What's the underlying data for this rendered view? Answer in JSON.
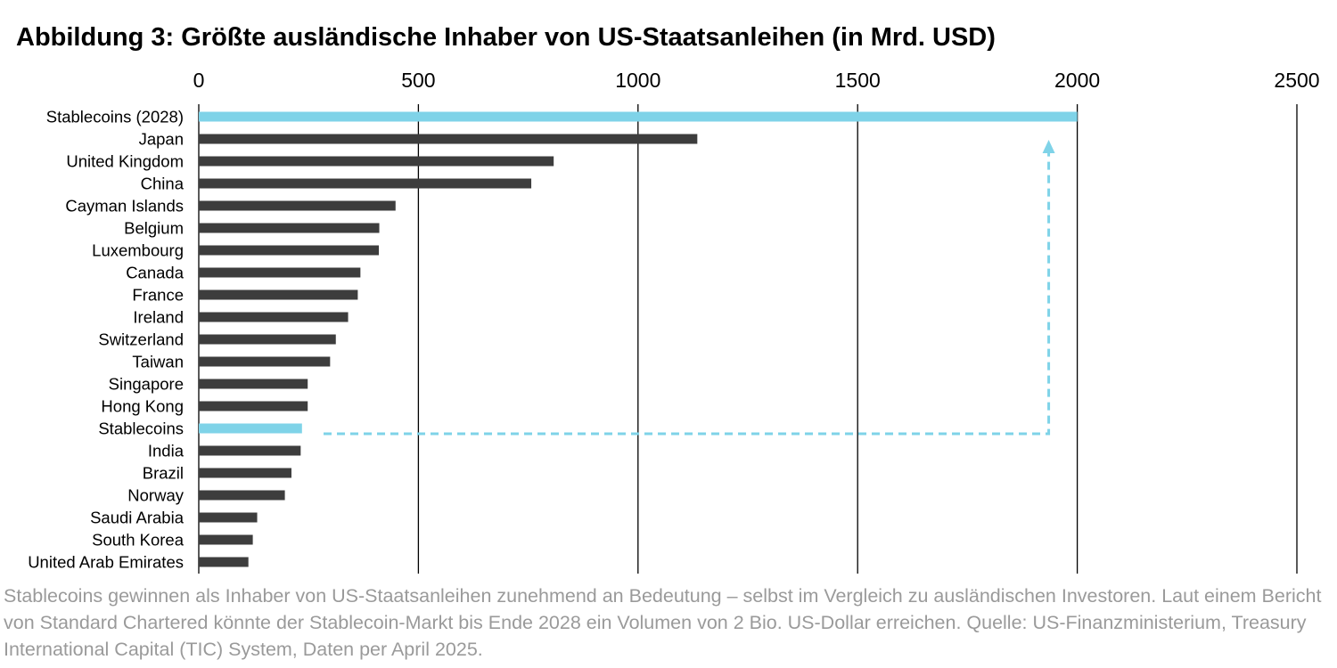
{
  "chart_data": {
    "type": "bar",
    "orientation": "horizontal",
    "title": "Abbildung 3: Größte ausländische Inhaber von US-Staatsanleihen (in Mrd. USD)",
    "xlabel": "",
    "ylabel": "",
    "xlim": [
      0,
      2500
    ],
    "xticks": [
      0,
      500,
      1000,
      1500,
      2000,
      2500
    ],
    "grid": "vertical",
    "legend": "none",
    "categories": [
      "Stablecoins (2028)",
      "Japan",
      "United Kingdom",
      "China",
      "Cayman Islands",
      "Belgium",
      "Luxembourg",
      "Canada",
      "France",
      "Ireland",
      "Switzerland",
      "Taiwan",
      "Singapore",
      "Hong Kong",
      "Stablecoins",
      "India",
      "Brazil",
      "Norway",
      "Saudi Arabia",
      "South Korea",
      "United Arab Emirates"
    ],
    "values": [
      2000,
      1135,
      808,
      757,
      448,
      411,
      410,
      368,
      362,
      340,
      312,
      299,
      248,
      248,
      235,
      232,
      211,
      196,
      133,
      123,
      113
    ],
    "highlight": [
      "Stablecoins (2028)",
      "Stablecoins"
    ],
    "colors": {
      "default": "#3d3d3d",
      "highlight": "#7fd3e8",
      "grid": "#000000"
    },
    "annotation": {
      "type": "dashed-arrow",
      "from": "Stablecoins",
      "to": "Stablecoins (2028)",
      "x_value": 1935
    }
  },
  "caption": "Stablecoins gewinnen als Inhaber von US-Staatsanleihen zunehmend an Bedeutung – selbst im Vergleich zu ausländischen Investoren. Laut einem Bericht von Standard Chartered könnte der Stablecoin-Markt bis Ende 2028 ein Volumen von 2 Bio. US-Dollar erreichen. Quelle: US-Finanzministerium, Treasury International Capital (TIC) System, Daten per April 2025."
}
